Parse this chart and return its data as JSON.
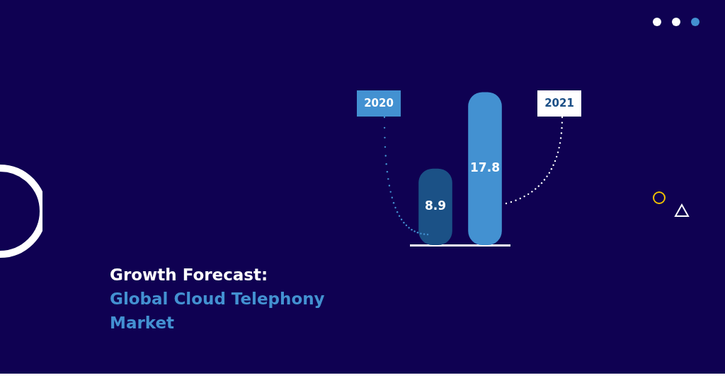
{
  "chart_data": {
    "type": "bar",
    "title": "Growth Forecast: Global Cloud Telephony Market",
    "categories": [
      "2020",
      "2021"
    ],
    "values": [
      8.9,
      17.8
    ],
    "colors": [
      "#1b5186",
      "#4391d1"
    ],
    "data_labels": true,
    "grid": false,
    "legend": false
  }
}
